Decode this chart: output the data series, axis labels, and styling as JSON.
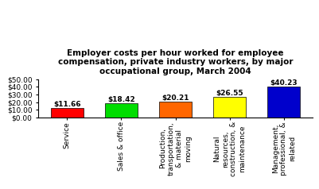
{
  "categories": [
    "Service",
    "Sales & office",
    "Production,\ntransportation,\n& material\nmoving",
    "Natural\nresources,\nconstruction, &\nmaintenance",
    "Management,\nprofessional, &\nrelated"
  ],
  "values": [
    11.66,
    18.42,
    20.21,
    26.55,
    40.23
  ],
  "bar_colors": [
    "#ff0000",
    "#00dd00",
    "#ff6600",
    "#ffff00",
    "#0000cc"
  ],
  "bar_labels": [
    "$11.66",
    "$18.42",
    "$20.21",
    "$26.55",
    "$40.23"
  ],
  "title": "Employer costs per hour worked for employee\ncompensation, private industry workers, by major\noccupational group, March 2004",
  "ylim": [
    0,
    50
  ],
  "yticks": [
    0,
    10,
    20,
    30,
    40,
    50
  ],
  "ytick_labels": [
    "$0.00",
    "$10.00",
    "$20.00",
    "$30.00",
    "$40.00",
    "$50.00"
  ],
  "background_color": "#ffffff",
  "title_fontsize": 7.5,
  "label_fontsize": 6.5,
  "tick_fontsize": 6.5,
  "bar_edge_color": "#000000",
  "bar_linewidth": 0.5,
  "bar_width": 0.6
}
